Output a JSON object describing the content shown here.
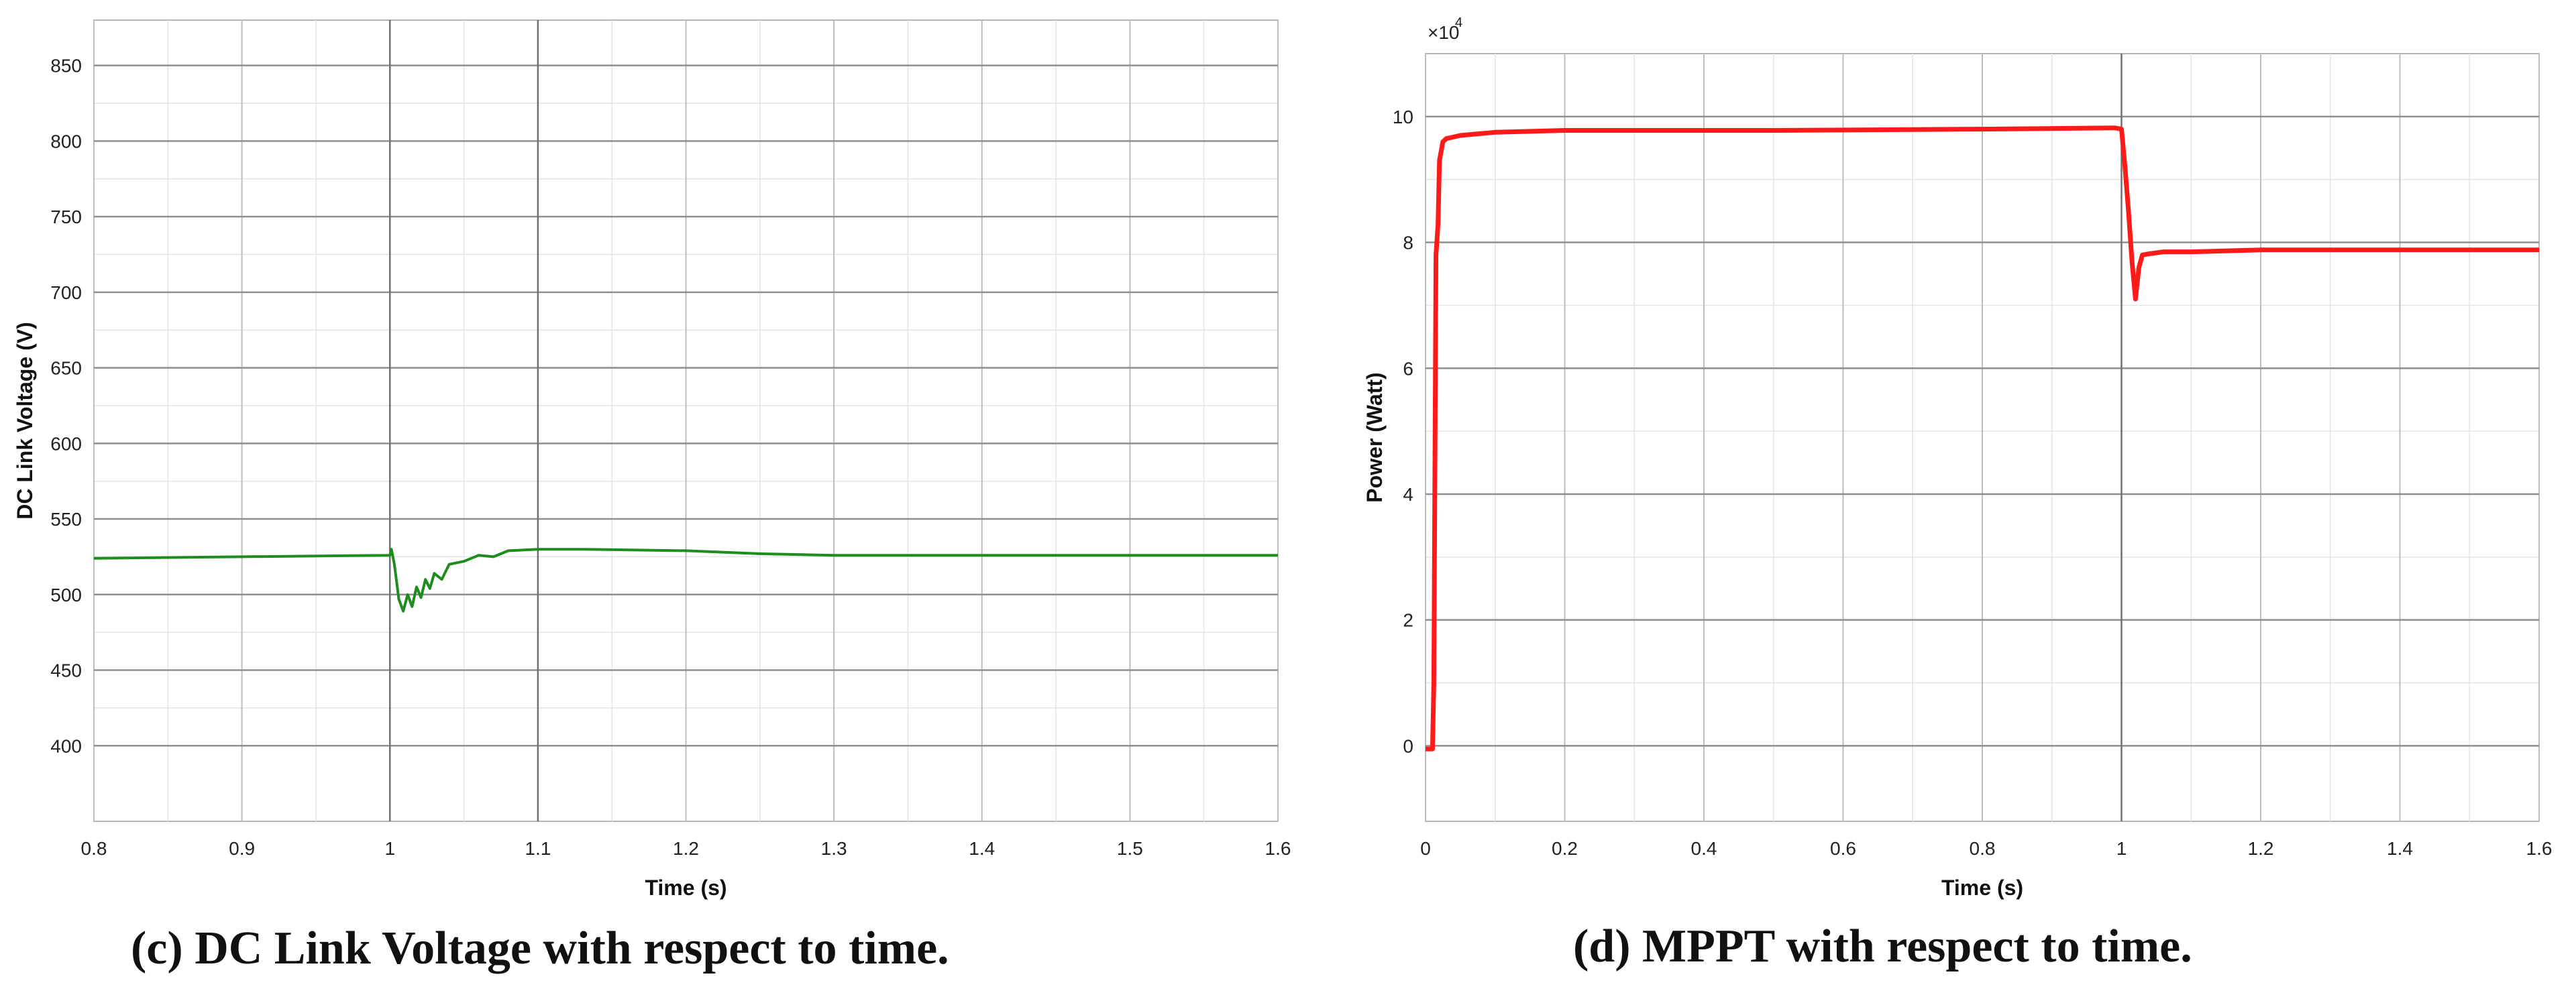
{
  "chart_data": [
    {
      "type": "line",
      "title": "",
      "xlabel": "Time (s)",
      "ylabel": "DC Link Voltage (V)",
      "xlim": [
        0.8,
        1.6
      ],
      "ylim": [
        350,
        880
      ],
      "xticks": [
        0.8,
        0.9,
        1.0,
        1.1,
        1.2,
        1.3,
        1.4,
        1.5,
        1.6
      ],
      "xtick_labels": [
        "0.8",
        "0.9",
        "1",
        "1.1",
        "1.2",
        "1.3",
        "1.4",
        "1.5",
        "1.6"
      ],
      "yticks": [
        400,
        450,
        500,
        550,
        600,
        650,
        700,
        750,
        800,
        850
      ],
      "ytick_labels": [
        "400",
        "450",
        "500",
        "550",
        "600",
        "650",
        "700",
        "750",
        "800",
        "850"
      ],
      "grid": true,
      "color": "#1e8c1e",
      "series": [
        {
          "x": [
            0.8,
            0.9,
            1.0,
            1.001,
            1.003,
            1.006,
            1.009,
            1.012,
            1.015,
            1.018,
            1.021,
            1.024,
            1.027,
            1.03,
            1.035,
            1.04,
            1.05,
            1.06,
            1.07,
            1.08,
            1.1,
            1.13,
            1.2,
            1.25,
            1.3,
            1.4,
            1.5,
            1.6
          ],
          "y": [
            524,
            525,
            526,
            530,
            520,
            497,
            489,
            500,
            492,
            505,
            498,
            510,
            504,
            514,
            510,
            520,
            522,
            526,
            525,
            529,
            530,
            530,
            529,
            527,
            526,
            526,
            526,
            526
          ]
        }
      ]
    },
    {
      "type": "line",
      "title": "",
      "xlabel": "Time (s)",
      "ylabel": "Power (Watt)",
      "y_multiplier": "×10",
      "y_exponent": "4",
      "xlim": [
        0,
        1.6
      ],
      "ylim": [
        -1.2,
        11.0
      ],
      "xticks": [
        0,
        0.2,
        0.4,
        0.6,
        0.8,
        1.0,
        1.2,
        1.4,
        1.6
      ],
      "xtick_labels": [
        "0",
        "0.2",
        "0.4",
        "0.6",
        "0.8",
        "1",
        "1.2",
        "1.4",
        "1.6"
      ],
      "yticks": [
        0,
        2,
        4,
        6,
        8,
        10
      ],
      "ytick_labels": [
        "0",
        "2",
        "4",
        "6",
        "8",
        "10"
      ],
      "grid": true,
      "color": "#ff1a1a",
      "series": [
        {
          "x": [
            0,
            0.01,
            0.012,
            0.015,
            0.018,
            0.02,
            0.025,
            0.03,
            0.05,
            0.1,
            0.2,
            0.5,
            0.8,
            0.99,
            1.0,
            1.005,
            1.01,
            1.015,
            1.02,
            1.025,
            1.03,
            1.04,
            1.06,
            1.1,
            1.2,
            1.4,
            1.6
          ],
          "y": [
            -0.05,
            -0.05,
            1.0,
            7.8,
            8.3,
            9.3,
            9.6,
            9.65,
            9.7,
            9.75,
            9.78,
            9.78,
            9.8,
            9.82,
            9.8,
            9.2,
            8.5,
            7.7,
            7.1,
            7.6,
            7.8,
            7.82,
            7.85,
            7.85,
            7.88,
            7.88,
            7.88
          ]
        }
      ]
    }
  ],
  "captions": {
    "c": "(c) DC Link Voltage with respect to time.",
    "d": "(d) MPPT with respect to time."
  }
}
